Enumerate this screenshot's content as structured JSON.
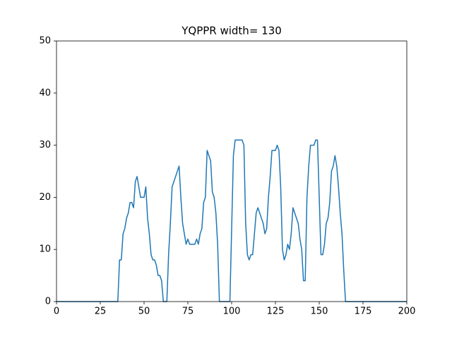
{
  "chart_data": {
    "type": "line",
    "title": "YQPPR width= 130",
    "x": [
      0,
      35,
      36,
      37,
      38,
      39,
      40,
      41,
      42,
      43,
      44,
      45,
      46,
      47,
      48,
      49,
      50,
      51,
      52,
      53,
      54,
      55,
      56,
      57,
      58,
      59,
      60,
      61,
      62,
      63,
      64,
      65,
      66,
      67,
      68,
      69,
      70,
      71,
      72,
      73,
      74,
      75,
      76,
      77,
      78,
      79,
      80,
      81,
      82,
      83,
      84,
      85,
      86,
      87,
      88,
      89,
      90,
      91,
      92,
      93,
      94,
      95,
      96,
      97,
      98,
      99,
      100,
      101,
      102,
      103,
      104,
      105,
      106,
      107,
      108,
      109,
      110,
      111,
      112,
      113,
      114,
      115,
      116,
      117,
      118,
      119,
      120,
      121,
      122,
      123,
      124,
      125,
      126,
      127,
      128,
      129,
      130,
      131,
      132,
      133,
      134,
      135,
      136,
      137,
      138,
      139,
      140,
      141,
      142,
      143,
      144,
      145,
      146,
      147,
      148,
      149,
      150,
      151,
      152,
      153,
      154,
      155,
      156,
      157,
      158,
      159,
      160,
      161,
      162,
      163,
      164,
      165,
      200
    ],
    "values": [
      0,
      0,
      8,
      8,
      13,
      14,
      16,
      17,
      19,
      19,
      18,
      23,
      24,
      22,
      20,
      20,
      20,
      22,
      16,
      13,
      9,
      8,
      8,
      7,
      5,
      5,
      4,
      0,
      0,
      0,
      9,
      15,
      22,
      23,
      24,
      25,
      26,
      20,
      15,
      13,
      11,
      12,
      11,
      11,
      11,
      11,
      12,
      11,
      13,
      14,
      19,
      20,
      29,
      28,
      27,
      21,
      20,
      17,
      11,
      0,
      0,
      0,
      0,
      0,
      0,
      0,
      14,
      28,
      31,
      31,
      31,
      31,
      31,
      30,
      15,
      9,
      8,
      9,
      9,
      13,
      17,
      18,
      17,
      16,
      15,
      13,
      14,
      20,
      24,
      29,
      29,
      29,
      30,
      29,
      22,
      10,
      8,
      9,
      11,
      10,
      13,
      18,
      17,
      16,
      15,
      12,
      10,
      4,
      4,
      20,
      26,
      30,
      30,
      30,
      31,
      31,
      20,
      9,
      9,
      11,
      15,
      16,
      19,
      25,
      26,
      28,
      26,
      22,
      17,
      13,
      6,
      0,
      0
    ],
    "color": "#1f77b4",
    "xlim": [
      0,
      200
    ],
    "xticks": [
      0,
      25,
      50,
      75,
      100,
      125,
      150,
      175,
      200
    ],
    "ylim": [
      0,
      50
    ],
    "yticks": [
      0,
      10,
      20,
      30,
      40,
      50
    ]
  }
}
